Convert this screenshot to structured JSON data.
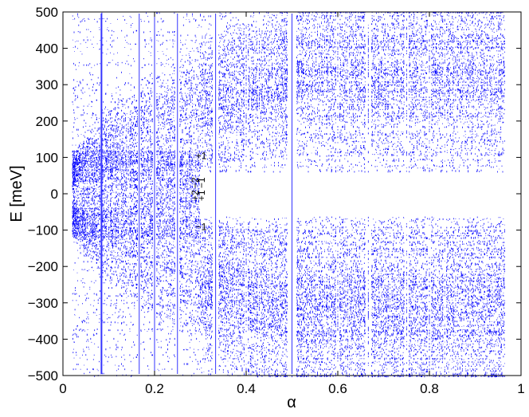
{
  "chart_data": {
    "type": "scatter",
    "title": "",
    "xlabel": "α",
    "ylabel": "E [meV]",
    "xlim": [
      0,
      1
    ],
    "ylim": [
      -500,
      500
    ],
    "x_ticks": [
      0,
      0.2,
      0.4,
      0.6,
      0.8,
      1
    ],
    "x_tick_labels": [
      "0",
      "0.2",
      "0.4",
      "0.6",
      "0.8",
      "1"
    ],
    "y_ticks": [
      -500,
      -400,
      -300,
      -200,
      -100,
      0,
      100,
      200,
      300,
      400,
      500
    ],
    "y_tick_labels": [
      "−500",
      "−400",
      "−300",
      "−200",
      "−100",
      "0",
      "100",
      "200",
      "300",
      "400",
      "500"
    ],
    "grid": false,
    "legend": "none",
    "series_color": "#0000ff",
    "description_of_marks": "Hofstadter-butterfly-like energy spectrum: dense vertical clusters of blue points at many flux values α in [0.02, 0.96], symmetric about E = 0, with fan-shaped bands and a gap around ±60 meV for α > 0.3",
    "annotations": [
      {
        "text": "+1",
        "x": 0.29,
        "y": 95
      },
      {
        "text": "+1",
        "x": 0.31,
        "y": -20
      },
      {
        "text": "+2",
        "x": 0.296,
        "y": -20
      },
      {
        "text": "−1",
        "x": 0.29,
        "y": -100
      },
      {
        "text": "−2",
        "x": 0.296,
        "y": 15
      },
      {
        "text": "−1",
        "x": 0.31,
        "y": 15
      }
    ]
  }
}
